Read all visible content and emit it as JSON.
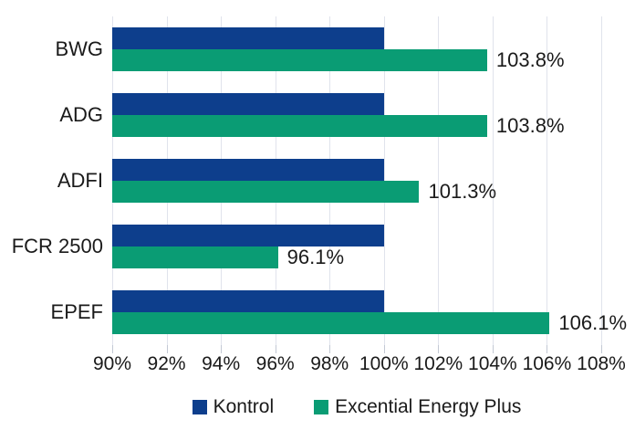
{
  "chart_data": {
    "type": "bar",
    "orientation": "horizontal",
    "title": "",
    "categories": [
      "BWG",
      "ADG",
      "ADFI",
      "FCR 2500",
      "EPEF"
    ],
    "series": [
      {
        "name": "Kontrol",
        "color": "#0d3e8c",
        "values": [
          100,
          100,
          100,
          100,
          100
        ]
      },
      {
        "name": "Excential Energy Plus",
        "color": "#0a9c74",
        "values": [
          103.8,
          103.8,
          101.3,
          96.1,
          106.1
        ]
      }
    ],
    "value_labels": [
      "103.8%",
      "103.8%",
      "101.3%",
      "96.1%",
      "106.1%"
    ],
    "x_axis": {
      "min": 90,
      "max": 108,
      "step": 2,
      "tick_labels": [
        "90%",
        "92%",
        "94%",
        "96%",
        "98%",
        "100%",
        "102%",
        "104%",
        "106%",
        "108%"
      ]
    },
    "grid": true,
    "legend_position": "bottom",
    "colors": {
      "gridline": "#e0e3ec",
      "tick": "#c3c9d4",
      "text": "#1a1a1a",
      "background": "#ffffff"
    }
  }
}
